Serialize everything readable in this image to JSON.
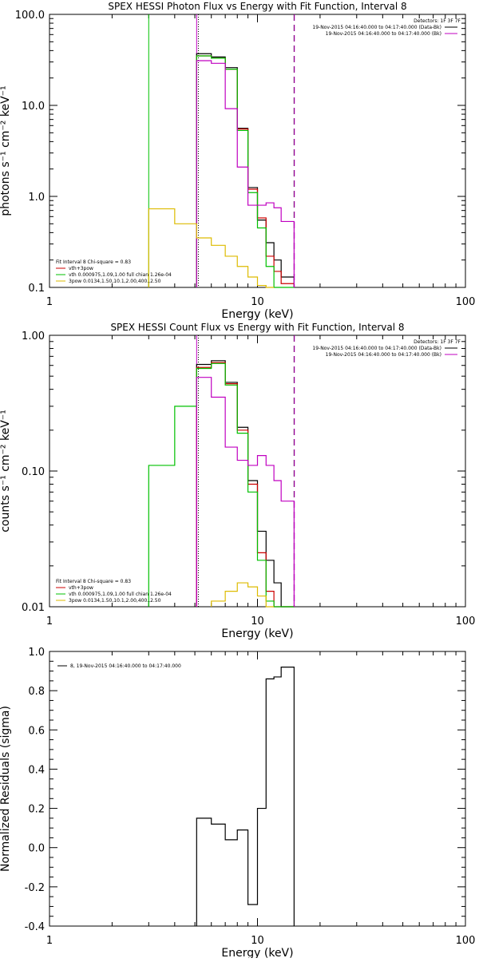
{
  "chart_data": [
    {
      "type": "line",
      "title": "SPEX HESSI Photon Flux vs Energy with Fit Function, Interval 8",
      "xlabel": "Energy (keV)",
      "ylabel": "photons s⁻¹ cm⁻² keV⁻¹",
      "xscale": "log",
      "yscale": "log",
      "xlim": [
        1,
        100
      ],
      "ylim": [
        0.1,
        100
      ],
      "x_ticks": [
        "1",
        "10",
        "100"
      ],
      "y_ticks": [
        "0.1",
        "1.0",
        "10.0",
        "100.0"
      ],
      "legend_topright": [
        {
          "text": "Detectors: 1F 3F 7F",
          "color": "#000000",
          "marker": false
        },
        {
          "text": "19-Nov-2015 04:16:40.000 to 04:17:40.000 (Data-Bk)",
          "color": "#000000",
          "marker": true
        },
        {
          "text": "19-Nov-2015 04:16:40.000 to 04:17:40.000 (Bk)",
          "color": "#c000c0",
          "marker": true
        }
      ],
      "legend_bottomleft": [
        {
          "text": "Fit Interval 8   Chi-square = 0.83",
          "color": "#000000",
          "marker": false
        },
        {
          "text": "vth+3pow",
          "color": "#cc0000",
          "marker": true
        },
        {
          "text": "vth 0.000975,1.09,1.00   full chian 1.26e-04",
          "color": "#00c000",
          "marker": true
        },
        {
          "text": "3pow 0.0134,1.50,10.1,2.00,400.,2.50",
          "color": "#ddbb00",
          "marker": true
        }
      ],
      "vlines": [
        {
          "x": 3,
          "color": "#00c000",
          "style": "solid"
        },
        {
          "x": 5.1,
          "color": "#c000c0",
          "style": "solid"
        },
        {
          "x": 5.2,
          "color": "#000000",
          "style": "dotted"
        },
        {
          "x": 15,
          "color": "#000000",
          "style": "dashed"
        },
        {
          "x": 15.05,
          "color": "#c000c0",
          "style": "dashed"
        }
      ],
      "series": [
        {
          "color": "#000000",
          "edges": [
            5.1,
            6,
            7,
            8,
            9,
            10,
            11,
            12,
            13,
            15
          ],
          "values": [
            37,
            34,
            26,
            5.6,
            1.25,
            0.55,
            0.31,
            0.2,
            0.13
          ]
        },
        {
          "color": "#cc0000",
          "edges": [
            5.1,
            6,
            7,
            8,
            9,
            10,
            11,
            12,
            13,
            15
          ],
          "values": [
            35,
            33,
            25,
            5.5,
            1.2,
            0.58,
            0.22,
            0.15,
            0.11
          ]
        },
        {
          "color": "#00c000",
          "edges": [
            5.1,
            6,
            7,
            8,
            9,
            10,
            11,
            12,
            13,
            15
          ],
          "values": [
            35,
            33,
            25,
            5.3,
            1.1,
            0.45,
            0.17,
            0.1,
            0.1
          ]
        },
        {
          "color": "#c000c0",
          "edges": [
            5.1,
            6,
            7,
            8,
            9,
            10,
            11,
            12,
            13,
            15
          ],
          "values": [
            31,
            29,
            9.2,
            2.1,
            0.8,
            0.8,
            0.85,
            0.75,
            0.53
          ]
        },
        {
          "color": "#ddbb00",
          "edges": [
            3,
            4,
            5.1,
            6,
            7,
            8,
            9,
            10,
            11,
            12
          ],
          "values": [
            0.73,
            0.5,
            0.35,
            0.29,
            0.22,
            0.17,
            0.13,
            0.105,
            0.1
          ]
        }
      ]
    },
    {
      "type": "line",
      "title": "SPEX HESSI Count Flux vs Energy with Fit Function, Interval 8",
      "xlabel": "Energy (keV)",
      "ylabel": "counts s⁻¹ cm⁻² keV⁻¹",
      "xscale": "log",
      "yscale": "log",
      "xlim": [
        1,
        100
      ],
      "ylim": [
        0.01,
        1.0
      ],
      "x_ticks": [
        "1",
        "10",
        "100"
      ],
      "y_ticks": [
        "0.01",
        "0.10",
        "1.00"
      ],
      "legend_topright": [
        {
          "text": "Detectors: 1F 3F 7F",
          "color": "#000000",
          "marker": false
        },
        {
          "text": "19-Nov-2015 04:16:40.000 to 04:17:40.000 (Data-Bk)",
          "color": "#000000",
          "marker": true
        },
        {
          "text": "19-Nov-2015 04:16:40.000 to 04:17:40.000 (Bk)",
          "color": "#c000c0",
          "marker": true
        }
      ],
      "legend_bottomleft": [
        {
          "text": "Fit Interval 8   Chi-square = 0.83",
          "color": "#000000",
          "marker": false
        },
        {
          "text": "vth+3pow",
          "color": "#cc0000",
          "marker": true
        },
        {
          "text": "vth 0.000975,1.09,1.00   full chian 1.26e-04",
          "color": "#00c000",
          "marker": true
        },
        {
          "text": "3pow 0.0134,1.50,10.1,2.00,400.,2.50",
          "color": "#ddbb00",
          "marker": true
        }
      ],
      "vlines": [
        {
          "x": 5.1,
          "color": "#c000c0",
          "style": "solid"
        },
        {
          "x": 5.2,
          "color": "#000000",
          "style": "dotted"
        },
        {
          "x": 15,
          "color": "#000000",
          "style": "dashed"
        },
        {
          "x": 15.05,
          "color": "#c000c0",
          "style": "dashed"
        }
      ],
      "series": [
        {
          "color": "#000000",
          "edges": [
            5.1,
            6,
            7,
            8,
            9,
            10,
            11,
            12,
            13,
            15
          ],
          "values": [
            0.61,
            0.65,
            0.45,
            0.21,
            0.085,
            0.036,
            0.022,
            0.015,
            0.01
          ]
        },
        {
          "color": "#cc0000",
          "edges": [
            5.1,
            6,
            7,
            8,
            9,
            10,
            11,
            12,
            13,
            15
          ],
          "values": [
            0.58,
            0.63,
            0.44,
            0.2,
            0.08,
            0.025,
            0.013,
            0.01,
            0.01
          ]
        },
        {
          "color": "#00c000",
          "edges": [
            3,
            4,
            5.1,
            6,
            7,
            8,
            9,
            10,
            11,
            12,
            13,
            15
          ],
          "values": [
            0.11,
            0.3,
            0.57,
            0.62,
            0.43,
            0.19,
            0.07,
            0.022,
            0.011,
            0.01,
            0.01
          ]
        },
        {
          "color": "#c000c0",
          "edges": [
            5.1,
            6,
            7,
            8,
            9,
            10,
            11,
            12,
            13,
            15
          ],
          "values": [
            0.49,
            0.35,
            0.15,
            0.12,
            0.11,
            0.13,
            0.11,
            0.085,
            0.06
          ]
        },
        {
          "color": "#ddbb00",
          "edges": [
            6,
            7,
            8,
            9,
            10,
            11,
            12
          ],
          "values": [
            0.011,
            0.013,
            0.015,
            0.014,
            0.012,
            0.01
          ]
        }
      ]
    },
    {
      "type": "line",
      "title": "",
      "xlabel": "Energy (keV)",
      "ylabel": "Normalized Residuals (sigma)",
      "xscale": "log",
      "yscale": "linear",
      "xlim": [
        1,
        100
      ],
      "ylim": [
        -0.4,
        1.0
      ],
      "x_ticks": [
        "1",
        "10",
        "100"
      ],
      "y_ticks": [
        "-0.4",
        "-0.2",
        "0.0",
        "0.2",
        "0.4",
        "0.6",
        "0.8",
        "1.0"
      ],
      "legend_topleft": [
        {
          "text": "8, 19-Nov-2015 04:16:40.000 to 04:17:40.000",
          "color": "#000000",
          "marker": true
        }
      ],
      "series": [
        {
          "color": "#000000",
          "edges": [
            5.1,
            6,
            7,
            8,
            9,
            10,
            11,
            12,
            13,
            15
          ],
          "values": [
            0.15,
            0.12,
            0.04,
            0.09,
            -0.29,
            0.2,
            0.86,
            0.87,
            0.92
          ]
        }
      ]
    }
  ]
}
